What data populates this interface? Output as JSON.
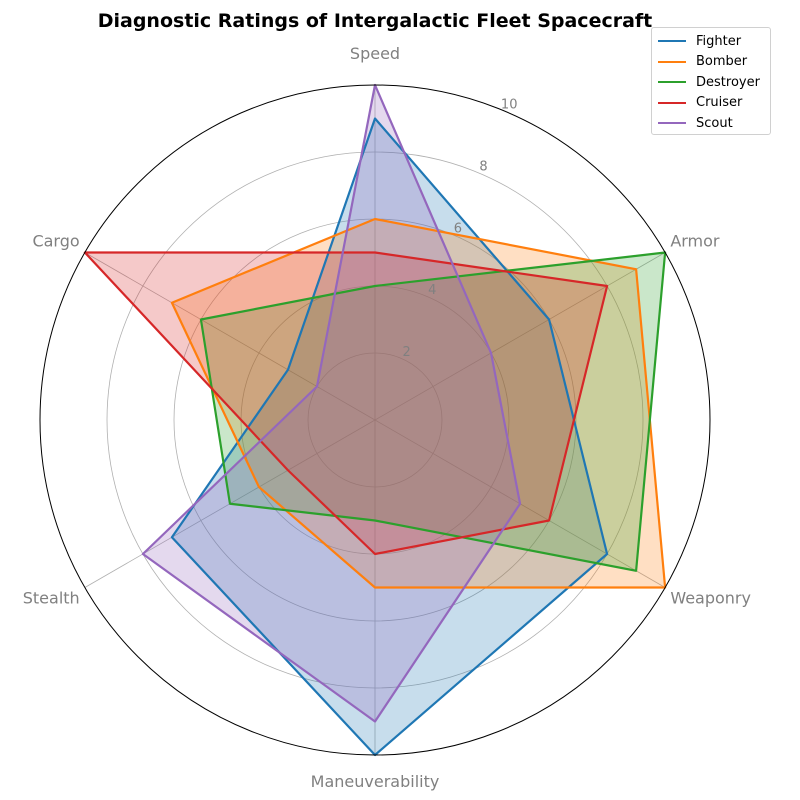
{
  "chart_data": {
    "type": "radar",
    "title": "Diagnostic Ratings of Intergalactic Fleet Spacecraft",
    "axes": [
      "Speed",
      "Armor",
      "Weaponry",
      "Maneuverability",
      "Stealth",
      "Cargo"
    ],
    "rlim": [
      0,
      10
    ],
    "rticks": [
      2,
      4,
      6,
      8,
      10
    ],
    "grid": true,
    "legend_position": "top-right",
    "series": [
      {
        "name": "Fighter",
        "color": "#1f77b4",
        "values": [
          9,
          6,
          8,
          10,
          7,
          3
        ]
      },
      {
        "name": "Bomber",
        "color": "#ff7f0e",
        "values": [
          6,
          9,
          10,
          5,
          4,
          7
        ]
      },
      {
        "name": "Destroyer",
        "color": "#2ca02c",
        "values": [
          4,
          10,
          9,
          3,
          5,
          6
        ]
      },
      {
        "name": "Cruiser",
        "color": "#d62728",
        "values": [
          5,
          8,
          6,
          4,
          3,
          10
        ]
      },
      {
        "name": "Scout",
        "color": "#9467bd",
        "values": [
          10,
          4,
          5,
          9,
          8,
          2
        ]
      }
    ]
  }
}
